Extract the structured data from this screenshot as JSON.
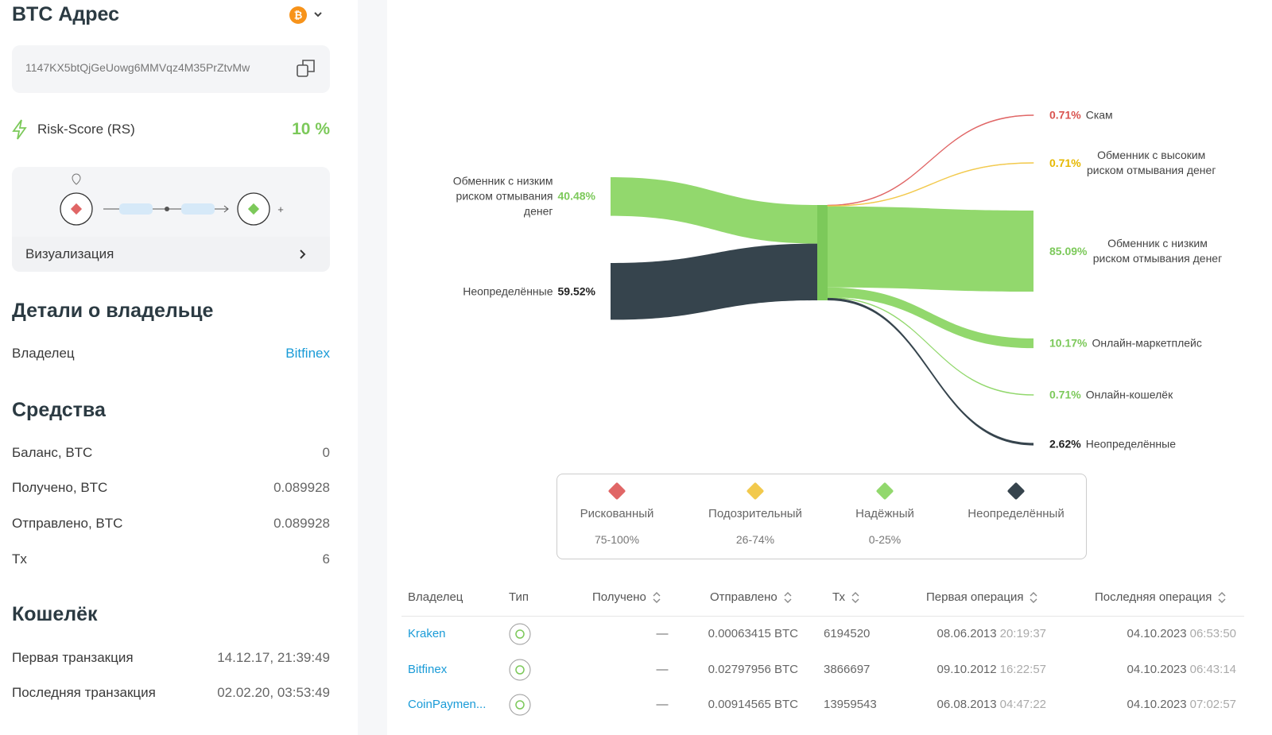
{
  "sidebar": {
    "title": "BTC Адрес",
    "address": "1147KX5btQjGeUowg6MMVqz4M35PrZtvMw",
    "risk_label": "Risk-Score (RS)",
    "risk_value": "10 %",
    "visualization": "Визуализация",
    "owner": {
      "title": "Детали о владельце",
      "label": "Владелец",
      "value": "Bitfinex"
    },
    "funds": {
      "title": "Средства",
      "rows": [
        [
          "Баланс, BTC",
          "0"
        ],
        [
          "Получено, BTC",
          "0.089928"
        ],
        [
          "Отправлено, BTC",
          "0.089928"
        ],
        [
          "Tx",
          "6"
        ]
      ]
    },
    "wallet": {
      "title": "Кошелёк",
      "rows": [
        [
          "Первая транзакция",
          "14.12.17, 21:39:49"
        ],
        [
          "Последняя транзакция",
          "02.02.20, 03:53:49"
        ]
      ]
    }
  },
  "sankey": {
    "sources": [
      {
        "name": "Обменник с низким риском отмывания денег",
        "percent": {
          "value": 40.48,
          "label": "40.48%"
        },
        "color": "#92d86d"
      },
      {
        "name": "Неопределённые",
        "percent": {
          "value": 59.52,
          "label": "59.52%"
        },
        "color": "#36444d"
      }
    ],
    "targets": [
      {
        "name": "Скам",
        "percent": {
          "value": 0.71,
          "label": "0.71%"
        },
        "color": "#e06666"
      },
      {
        "name": "Обменник с высоким риском отмывания денег",
        "percent": {
          "value": 0.71,
          "label": "0.71%"
        },
        "color": "#f2c94c"
      },
      {
        "name": "Обменник с низким риском отмывания денег",
        "percent": {
          "value": 85.09,
          "label": "85.09%"
        },
        "color": "#92d86d"
      },
      {
        "name": "Онлайн-маркетплейс",
        "percent": {
          "value": 10.17,
          "label": "10.17%"
        },
        "color": "#92d86d"
      },
      {
        "name": "Онлайн-кошелёк",
        "percent": {
          "value": 0.71,
          "label": "0.71%"
        },
        "color": "#92d86d"
      },
      {
        "name": "Неопределённые",
        "percent": {
          "value": 2.62,
          "label": "2.62%"
        },
        "color": "#36444d"
      }
    ]
  },
  "legend": [
    {
      "name": "Рискованный",
      "range": "75-100%",
      "color": "#e06666"
    },
    {
      "name": "Подозрительный",
      "range": "26-74%",
      "color": "#f2c94c"
    },
    {
      "name": "Надёжный",
      "range": "0-25%",
      "color": "#92d86d"
    },
    {
      "name": "Неопределённый",
      "range": "",
      "color": "#36444d"
    }
  ],
  "table": {
    "headers": [
      "Владелец",
      "Тип",
      "Получено",
      "Отправлено",
      "Тх",
      "Первая операция",
      "Последняя операция"
    ],
    "rows": [
      [
        "Kraken",
        "—",
        "0.00063415 BTC",
        "6194520",
        "08.06.2013",
        "20:19:37",
        "04.10.2023",
        "06:53:50"
      ],
      [
        "Bitfinex",
        "—",
        "0.02797956 BTC",
        "3866697",
        "09.10.2012",
        "16:22:57",
        "04.10.2023",
        "06:43:14"
      ],
      [
        "CoinPaymen...",
        "—",
        "0.00914565 BTC",
        "13959543",
        "06.08.2013",
        "04:47:22",
        "04.10.2023",
        "07:02:57"
      ]
    ]
  }
}
